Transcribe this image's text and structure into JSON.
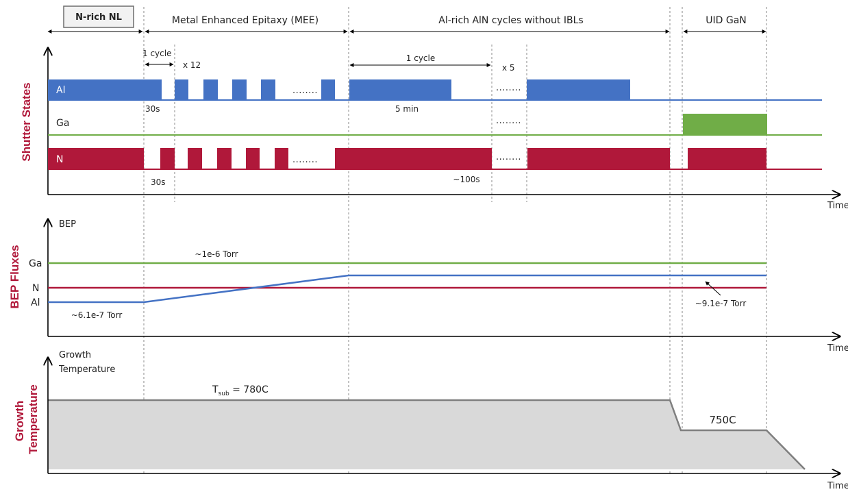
{
  "phases": {
    "n_rich_nl": "N-rich NL",
    "mee": "Metal Enhanced Epitaxy (MEE)",
    "al_rich": "Al-rich AlN cycles without IBLs",
    "uid_gan": "UID GaN"
  },
  "panels": {
    "shutter": {
      "side_label": "Shutter States",
      "rows": {
        "al": "Al",
        "ga": "Ga",
        "n": "N"
      },
      "one_cycle_mee": "1 cycle",
      "x12": "x 12",
      "al_30s": "30s",
      "n_30s": "30s",
      "one_cycle_alrich": "1 cycle",
      "x5": "x 5",
      "five_min": "5 min",
      "hundred_s": "~100s",
      "ellipsis": "........",
      "time_label": "Time"
    },
    "bep": {
      "side_label": "BEP Fluxes",
      "axis_title": "BEP",
      "ticks": {
        "ga": "Ga",
        "n": "N",
        "al": "Al"
      },
      "ga_flux": "~1e-6 Torr",
      "al_start_flux": "~6.1e-7 Torr",
      "al_end_flux": "~9.1e-7 Torr",
      "time_label": "Time"
    },
    "temperature": {
      "side_label_line1": "Growth",
      "side_label_line2": "Temperature",
      "axis_title_line1": "Growth",
      "axis_title_line2": "Temperature",
      "tsub_prefix": "T",
      "tsub_subscript": "sub",
      "tsub_value": " = 780C",
      "gan_temp": "750C",
      "time_label": "Time"
    }
  },
  "colors": {
    "al": "#4472c4",
    "ga": "#70ad47",
    "n": "#b0183a",
    "temperature_line": "#7f7f7f",
    "temperature_fill": "#d9d9d9",
    "side_label": "#b0183a"
  }
}
